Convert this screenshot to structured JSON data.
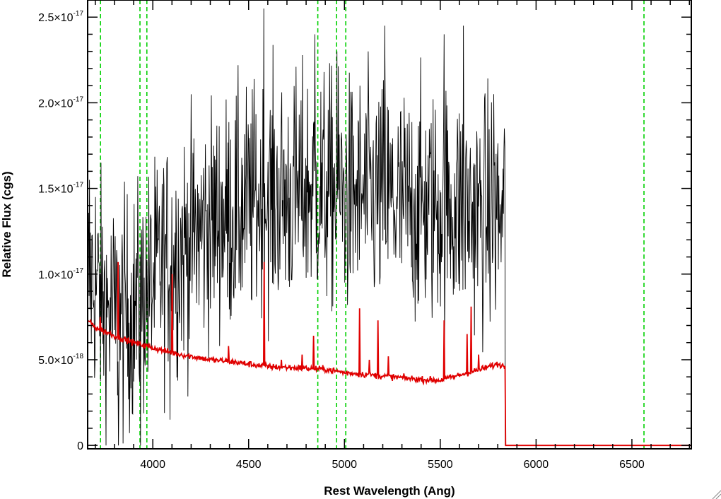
{
  "chart_data": {
    "type": "line",
    "xlabel": "Rest Wavelength (Ang)",
    "ylabel": "Relative Flux (cgs)",
    "xlim": [
      3660,
      6810
    ],
    "ylim": [
      -2e-19,
      2.6e-17
    ],
    "grid": false,
    "legend": "none",
    "x_ticks": [
      {
        "value": 4000,
        "label": "4000"
      },
      {
        "value": 4500,
        "label": "4500"
      },
      {
        "value": 5000,
        "label": "5000"
      },
      {
        "value": 5500,
        "label": "5500"
      },
      {
        "value": 6000,
        "label": "6000"
      },
      {
        "value": 6500,
        "label": "6500"
      }
    ],
    "y_ticks": [
      {
        "value": 0,
        "mant": "0",
        "exp": ""
      },
      {
        "value": 5e-18,
        "mant": "5.0×10",
        "exp": "-18"
      },
      {
        "value": 1e-17,
        "mant": "1.0×10",
        "exp": "-17"
      },
      {
        "value": 1.5e-17,
        "mant": "1.5×10",
        "exp": "-17"
      },
      {
        "value": 2e-17,
        "mant": "2.0×10",
        "exp": "-17"
      },
      {
        "value": 2.5e-17,
        "mant": "2.5×10",
        "exp": "-17"
      }
    ],
    "vlines": [
      3727,
      3933,
      3969,
      4861,
      4959,
      5007,
      6563
    ],
    "series": [
      {
        "color": "#000000",
        "style": "noisy-spectrum",
        "x_range": [
          3660,
          5840
        ],
        "x": [
          3660,
          3700,
          3750,
          3800,
          3850,
          3900,
          3950,
          4000,
          4050,
          4100,
          4150,
          4200,
          4300,
          4400,
          4500,
          4600,
          4700,
          4800,
          4900,
          5000,
          5100,
          5200,
          5300,
          5400,
          5500,
          5600,
          5700,
          5800,
          5840
        ],
        "y": [
          1e-17,
          9.5e-18,
          8e-18,
          7.5e-18,
          7.5e-18,
          8e-18,
          8.5e-18,
          9.5e-18,
          1.05e-17,
          1.1e-17,
          1.15e-17,
          1.2e-17,
          1.3e-17,
          1.35e-17,
          1.4e-17,
          1.45e-17,
          1.45e-17,
          1.5e-17,
          1.5e-17,
          1.45e-17,
          1.45e-17,
          1.45e-17,
          1.4e-17,
          1.4e-17,
          1.4e-17,
          1.4e-17,
          1.35e-17,
          1.35e-17,
          1.3e-17
        ],
        "noise_sigma": 3.5e-18,
        "spikes": [
          {
            "x": 3670,
            "y": 1.55e-17
          },
          {
            "x": 3700,
            "y": 1.45e-17
          },
          {
            "x": 3822,
            "y": 0
          },
          {
            "x": 3935,
            "y": 0
          },
          {
            "x": 3950,
            "y": 1.2e-17
          },
          {
            "x": 4090,
            "y": 1.5e-18
          },
          {
            "x": 4580,
            "y": 2.55e-17
          },
          {
            "x": 4845,
            "y": 2.4e-17
          },
          {
            "x": 4960,
            "y": 2.3e-17
          },
          {
            "x": 5210,
            "y": 2.45e-17
          },
          {
            "x": 5520,
            "y": 2.4e-17
          },
          {
            "x": 5620,
            "y": 2.45e-17
          },
          {
            "x": 5780,
            "y": 2.05e-17
          },
          {
            "x": 5835,
            "y": 1.85e-17
          },
          {
            "x": 5840,
            "y": 0
          }
        ]
      },
      {
        "color": "#e00000",
        "style": "model",
        "x": [
          3660,
          3700,
          3800,
          3900,
          4000,
          4100,
          4200,
          4300,
          4400,
          4500,
          4600,
          4700,
          4800,
          4900,
          5000,
          5100,
          5200,
          5300,
          5400,
          5500,
          5600,
          5700,
          5800,
          5840,
          5841,
          6810
        ],
        "y": [
          7.3e-18,
          6.9e-18,
          6.4e-18,
          6e-18,
          5.7e-18,
          5.4e-18,
          5.2e-18,
          5e-18,
          4.9e-18,
          4.75e-18,
          4.6e-18,
          4.55e-18,
          4.5e-18,
          4.45e-18,
          4.25e-18,
          4.15e-18,
          4.05e-18,
          3.95e-18,
          3.85e-18,
          3.8e-18,
          4.1e-18,
          4.4e-18,
          4.75e-18,
          4.6e-18,
          0,
          0
        ],
        "emission_lines": [
          {
            "x": 3727,
            "y": 7.5e-18
          },
          {
            "x": 3820,
            "y": 1.07e-17
          },
          {
            "x": 4101,
            "y": 1e-17
          },
          {
            "x": 4395,
            "y": 5.8e-18
          },
          {
            "x": 4580,
            "y": 1.07e-17
          },
          {
            "x": 4670,
            "y": 5e-18
          },
          {
            "x": 4780,
            "y": 5.3e-18
          },
          {
            "x": 4840,
            "y": 6.4e-18
          },
          {
            "x": 5080,
            "y": 8e-18
          },
          {
            "x": 5130,
            "y": 5e-18
          },
          {
            "x": 5175,
            "y": 7.3e-18
          },
          {
            "x": 5230,
            "y": 5.2e-18
          },
          {
            "x": 5520,
            "y": 7.3e-18
          },
          {
            "x": 5640,
            "y": 6.5e-18
          },
          {
            "x": 5660,
            "y": 8.1e-18
          },
          {
            "x": 5700,
            "y": 5.3e-18
          }
        ]
      }
    ]
  }
}
